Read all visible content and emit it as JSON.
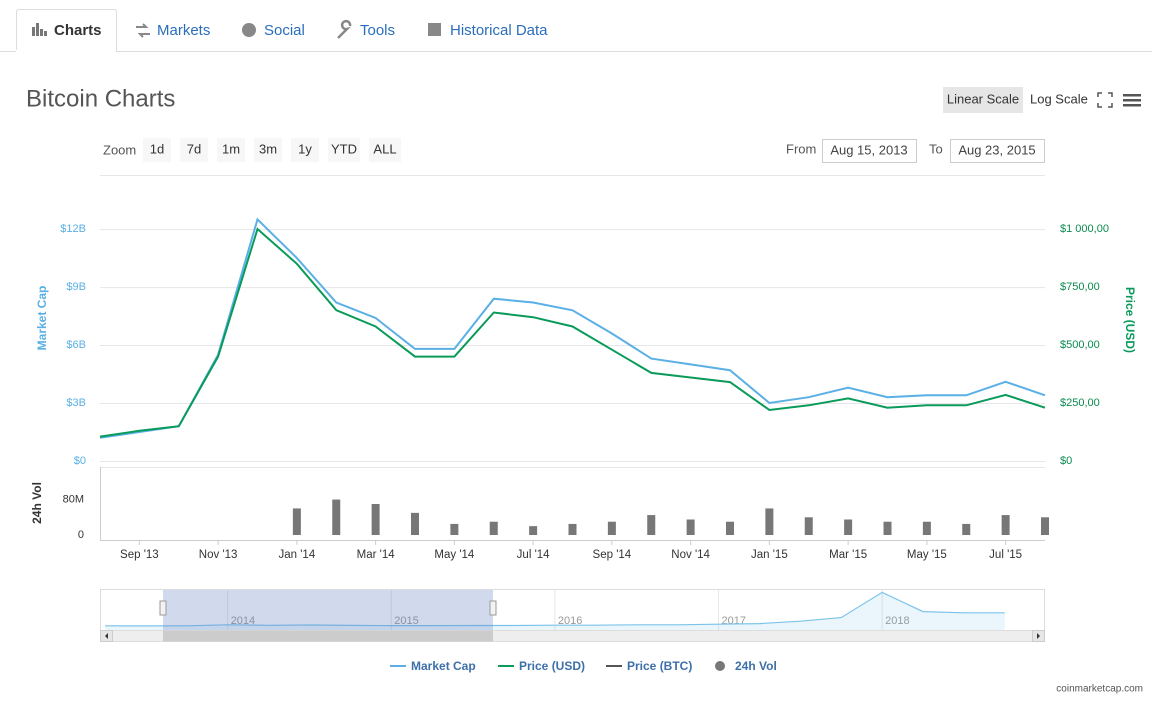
{
  "tabs": [
    "Charts",
    "Markets",
    "Social",
    "Tools",
    "Historical Data"
  ],
  "title": "Bitcoin Charts",
  "scale_buttons": [
    "Linear Scale",
    "Log Scale"
  ],
  "zoom": {
    "label": "Zoom",
    "buttons": [
      "1d",
      "7d",
      "1m",
      "3m",
      "1y",
      "YTD",
      "ALL"
    ]
  },
  "range": {
    "from_label": "From",
    "from": "Aug 15, 2013",
    "to_label": "To",
    "to": "Aug 23, 2015"
  },
  "chart_data": {
    "type": "line",
    "categories": [
      null,
      "Sep '13",
      null,
      "Nov '13",
      null,
      "Jan '14",
      null,
      "Mar '14",
      null,
      "May '14",
      null,
      "Jul '14",
      null,
      "Sep '14",
      null,
      "Nov '14",
      null,
      "Jan '15",
      null,
      "Mar '15",
      null,
      "May '15",
      null,
      "Jul '15",
      null
    ],
    "series": [
      {
        "name": "Market Cap",
        "color": "#5ab0e6",
        "axis": "y",
        "values": [
          1200000000,
          1500000000,
          1800000000,
          5500000000,
          12500000000,
          10500000000,
          8200000000,
          7400000000,
          5800000000,
          5800000000,
          8400000000,
          8200000000,
          7800000000,
          6600000000,
          5300000000,
          5000000000,
          4700000000,
          3000000000,
          3300000000,
          3800000000,
          3300000000,
          3400000000,
          3400000000,
          4100000000,
          3400000000
        ]
      },
      {
        "name": "Price (USD)",
        "color": "#0a9a5a",
        "axis": "y2",
        "values": [
          105,
          130,
          150,
          450,
          1000,
          850,
          650,
          580,
          450,
          450,
          640,
          620,
          580,
          480,
          380,
          360,
          340,
          220,
          240,
          270,
          230,
          240,
          240,
          285,
          230
        ]
      },
      {
        "name": "Price (BTC)",
        "color": "#555555"
      },
      {
        "name": "24h Vol",
        "color": "#777777",
        "axis": "vol",
        "values": [
          null,
          null,
          null,
          null,
          null,
          60000000,
          80000000,
          70000000,
          50000000,
          25000000,
          30000000,
          20000000,
          25000000,
          30000000,
          45000000,
          35000000,
          30000000,
          60000000,
          40000000,
          35000000,
          30000000,
          30000000,
          25000000,
          45000000,
          40000000
        ]
      }
    ],
    "y_label": "Market Cap",
    "ylim": [
      0,
      14800000000
    ],
    "yticks": [
      {
        "value": 0,
        "label": "$0"
      },
      {
        "value": 3000000000,
        "label": "$3B"
      },
      {
        "value": 6000000000,
        "label": "$6B"
      },
      {
        "value": 9000000000,
        "label": "$9B"
      },
      {
        "value": 12000000000,
        "label": "$12B"
      }
    ],
    "y2_label": "Price (USD)",
    "y2lim": [
      0,
      1233
    ],
    "y2ticks": [
      {
        "value": 0,
        "label": "$0"
      },
      {
        "value": 250,
        "label": "$250,00"
      },
      {
        "value": 500,
        "label": "$500,00"
      },
      {
        "value": 750,
        "label": "$750,00"
      },
      {
        "value": 1000,
        "label": "$1 000,00"
      }
    ],
    "vol_label": "24h Vol",
    "vol_lim": [
      0,
      140000000
    ],
    "vol_ticks": [
      0,
      {
        "value": 80000000,
        "label": "80M"
      }
    ],
    "grid": true,
    "navigator": {
      "categories": [
        null,
        null,
        null,
        "2014",
        null,
        null,
        null,
        "2015",
        null,
        null,
        null,
        "2016",
        null,
        null,
        null,
        "2017",
        null,
        null,
        null,
        "2018",
        null,
        null,
        null
      ],
      "values": [
        1500000000,
        1000000000,
        2000000000,
        10000000000,
        6000000000,
        8000000000,
        5000000000,
        3000000000,
        3400000000,
        4000000000,
        4000000000,
        6500000000,
        7000000000,
        10000000000,
        10000000000,
        15000000000,
        20000000000,
        40000000000,
        70000000000,
        280000000000,
        120000000000,
        110000000000,
        110000000000
      ],
      "ylim": [
        0,
        300000000000
      ],
      "color": "#7cc3ea"
    }
  },
  "credit": "coinmarketcap.com"
}
